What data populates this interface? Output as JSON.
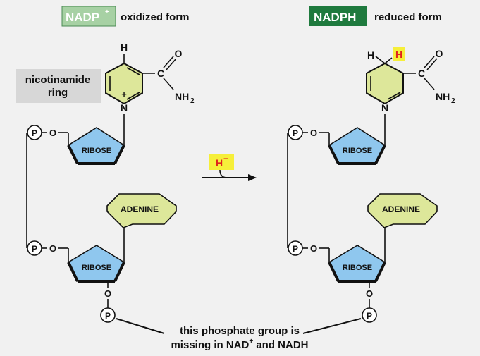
{
  "left": {
    "title": "NADP",
    "title_sup": "+",
    "title_sub": "oxidized form",
    "ring_label_line1": "nicotinamide",
    "ring_label_line2": "ring",
    "ring_H": "H",
    "ring_N": "N",
    "ring_charge": "+",
    "carbonyl_C": "C",
    "carbonyl_O": "O",
    "amide_NH": "NH",
    "amide_sub": "2",
    "phosphate_top": "P",
    "phosphate_mid": "P",
    "phosphate_bottom": "P",
    "oxygen_top": "O",
    "oxygen_mid": "O",
    "oxygen_bottom": "O",
    "ribose_top": "RIBOSE",
    "ribose_bottom": "RIBOSE",
    "adenine": "ADENINE"
  },
  "right": {
    "title": "NADPH",
    "title_sub": "reduced form",
    "ring_H1": "H",
    "ring_H2": "H",
    "ring_N": "N",
    "carbonyl_C": "C",
    "carbonyl_O": "O",
    "amide_NH": "NH",
    "amide_sub": "2",
    "phosphate_top": "P",
    "phosphate_mid": "P",
    "phosphate_bottom": "P",
    "oxygen_top": "O",
    "oxygen_mid": "O",
    "oxygen_bottom": "O",
    "ribose_top": "RIBOSE",
    "ribose_bottom": "RIBOSE",
    "adenine": "ADENINE"
  },
  "reaction": {
    "hydride": "H",
    "hydride_sup": "−"
  },
  "caption": {
    "line1": "this phosphate group is",
    "line2_prefix": "missing in NAD",
    "line2_sup": "+",
    "line2_suffix": " and NADH"
  },
  "colors": {
    "background": "#f1f1f1",
    "nadp_badge": "#a7d1a4",
    "nadph_badge": "#1f7a3e",
    "ring_fill": "#dde79a",
    "ribose_fill": "#8fc7ee",
    "adenine_fill": "#dde79a",
    "highlight": "#f6ef3a",
    "hydride_text": "#e0231c",
    "label_box": "#d7d7d7"
  }
}
